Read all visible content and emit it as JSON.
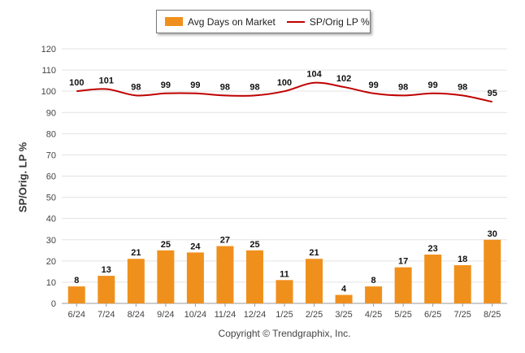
{
  "chart_data": {
    "type": "bar",
    "categories": [
      "6/24",
      "7/24",
      "8/24",
      "9/24",
      "10/24",
      "11/24",
      "12/24",
      "1/25",
      "2/25",
      "3/25",
      "4/25",
      "5/25",
      "6/25",
      "7/25",
      "8/25"
    ],
    "series": [
      {
        "name": "Avg Days on Market",
        "type": "bar",
        "color": "#f0901c",
        "values": [
          8,
          13,
          21,
          25,
          24,
          27,
          25,
          11,
          21,
          4,
          8,
          17,
          23,
          18,
          30
        ]
      },
      {
        "name": "SP/Orig LP %",
        "type": "line",
        "color": "#c00000",
        "values": [
          100,
          101,
          98,
          99,
          99,
          98,
          98,
          100,
          104,
          102,
          99,
          98,
          99,
          98,
          95
        ]
      }
    ],
    "ylabel": "SP/Orig. LP %",
    "ylim": [
      0,
      120
    ],
    "yticks": [
      0,
      10,
      20,
      30,
      40,
      50,
      60,
      70,
      80,
      90,
      100,
      110,
      120
    ],
    "grid": true,
    "legend_position": "top"
  },
  "footer": {
    "copyright": "Copyright © Trendgraphix, Inc."
  }
}
